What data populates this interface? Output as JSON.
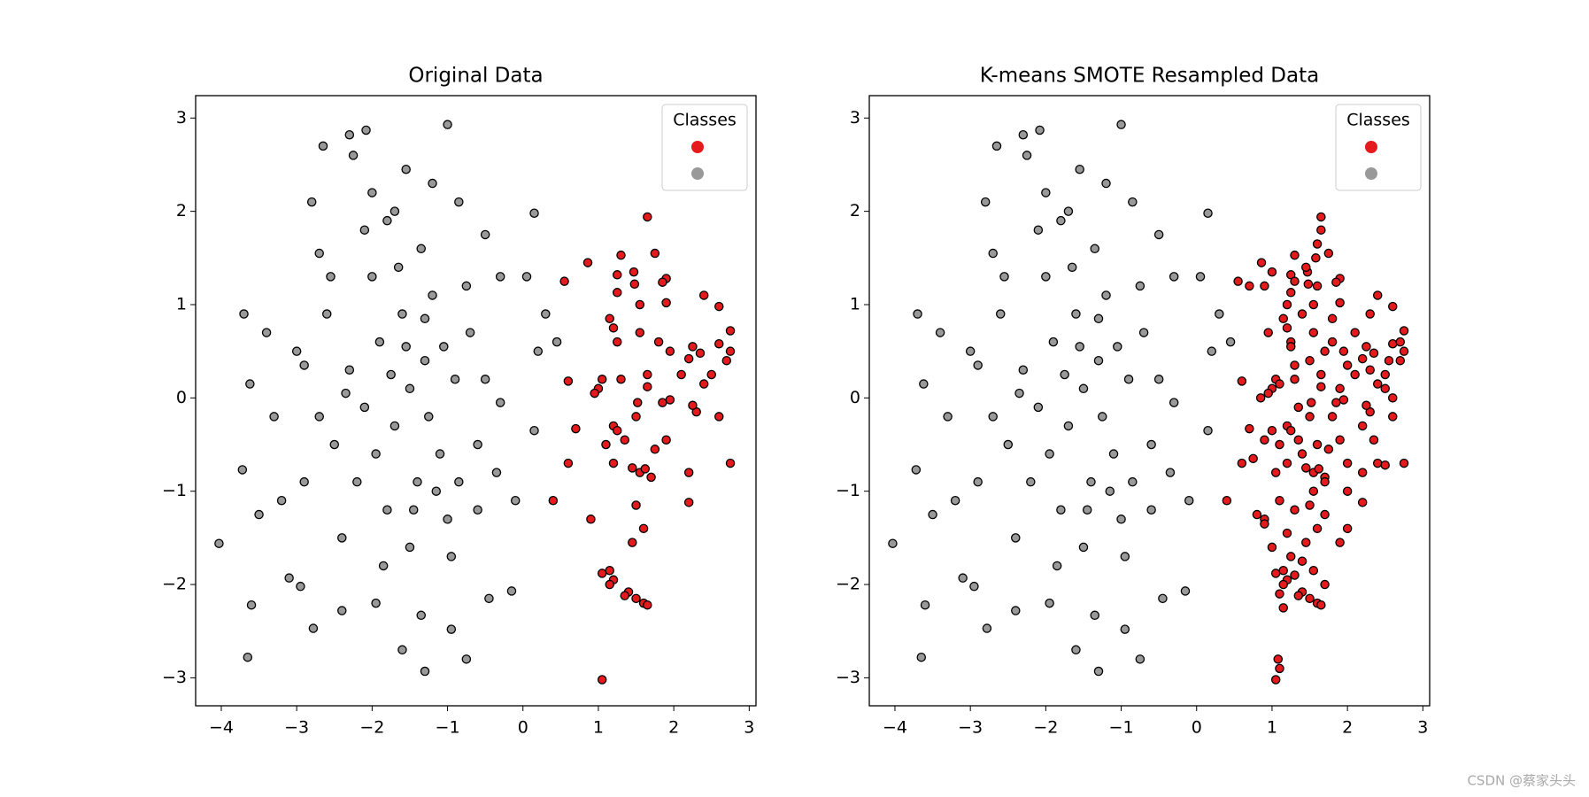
{
  "chart_data": [
    {
      "type": "scatter",
      "title": "Original Data",
      "legend_title": "Classes",
      "legend": "upper right",
      "xlim": [
        -4.34,
        3.09
      ],
      "ylim": [
        -3.3,
        3.24
      ],
      "xticks": [
        {
          "value": -4,
          "label": "−4"
        },
        {
          "value": -3,
          "label": "−3"
        },
        {
          "value": -2,
          "label": "−2"
        },
        {
          "value": -1,
          "label": "−1"
        },
        0,
        1,
        2,
        3
      ],
      "yticks": [
        {
          "value": -3,
          "label": "−3"
        },
        {
          "value": -2,
          "label": "−2"
        },
        {
          "value": -1,
          "label": "−1"
        },
        0,
        1,
        2,
        3
      ],
      "series": [
        {
          "color": "#e41a1c",
          "x": [
            1.65,
            0.86,
            0.55,
            1.3,
            1.75,
            1.25,
            1.47,
            1.48,
            1.9,
            1.85,
            2.4,
            2.6,
            1.25,
            1.55,
            1.9,
            1.15,
            1.2,
            1.25,
            1.55,
            1.8,
            1.95,
            2.2,
            2.25,
            2.35,
            2.6,
            2.75,
            2.75,
            2.7,
            2.5,
            2.1,
            1.65,
            1.3,
            1.05,
            1.0,
            0.6,
            0.95,
            1.65,
            2.4,
            2.3,
            1.95,
            1.85,
            2.25,
            1.52,
            1.5,
            1.2,
            0.7,
            1.25,
            1.35,
            1.1,
            1.9,
            1.75,
            2.6,
            0.6,
            1.2,
            1.45,
            1.55,
            1.62,
            1.7,
            2.2,
            2.75,
            0.4,
            1.5,
            2.2,
            0.9,
            1.6,
            1.45,
            1.05,
            1.15,
            1.2,
            1.15,
            1.4,
            1.5,
            1.6,
            1.65,
            1.35,
            1.05
          ],
          "y": [
            1.94,
            1.45,
            1.25,
            1.53,
            1.55,
            1.32,
            1.35,
            1.22,
            1.28,
            1.24,
            1.1,
            0.98,
            1.13,
            1.0,
            1.02,
            0.85,
            0.75,
            0.6,
            0.7,
            0.6,
            0.5,
            0.42,
            0.55,
            0.48,
            0.58,
            0.72,
            0.5,
            0.4,
            0.25,
            0.25,
            0.25,
            0.2,
            0.2,
            0.1,
            0.18,
            0.05,
            0.12,
            0.15,
            -0.15,
            -0.02,
            -0.05,
            -0.08,
            -0.05,
            -0.2,
            -0.3,
            -0.33,
            -0.35,
            -0.45,
            -0.5,
            -0.45,
            -0.55,
            -0.2,
            -0.7,
            -0.7,
            -0.75,
            -0.8,
            -0.76,
            -0.85,
            -0.8,
            -0.7,
            -1.1,
            -1.15,
            -1.12,
            -1.3,
            -1.4,
            -1.55,
            -1.88,
            -1.85,
            -1.95,
            -2.0,
            -2.08,
            -2.15,
            -2.2,
            -2.22,
            -2.12,
            -3.02
          ]
        },
        {
          "color": "#999999",
          "x": [
            -4.03,
            -3.65,
            -3.6,
            -3.7,
            -3.72,
            -3.62,
            -3.5,
            -3.4,
            -2.95,
            -3.1,
            -2.78,
            -2.65,
            -2.3,
            -2.08,
            -1.0,
            -2.25,
            -1.3,
            -0.75,
            -1.6,
            -1.55,
            -0.85,
            0.15,
            0.05,
            0.3,
            0.2,
            -0.1,
            0.15,
            -0.3,
            -0.15,
            -0.45,
            -0.95,
            -2.4,
            -1.95,
            -1.35,
            -3.2,
            -3.3,
            -2.9,
            -2.7,
            -2.8,
            -2.0,
            -1.8,
            -1.2,
            -0.5,
            -0.3,
            0.45,
            -1.5,
            -1.7,
            -1.3,
            -1.9,
            -1.1,
            -2.1,
            -1.4,
            -1.6,
            -2.3,
            -0.9,
            -1.2,
            -1.8,
            -2.0,
            -1.0,
            -2.5,
            -0.7,
            -1.5,
            -2.2,
            -1.35,
            -0.6,
            -2.6,
            -1.75,
            -1.25,
            -0.85,
            -2.4,
            -1.65,
            -1.05,
            -1.95,
            -2.7,
            -0.5,
            -1.45,
            -2.1,
            -0.75,
            -1.55,
            -2.35,
            -1.15,
            -1.85,
            -0.95,
            -3.0,
            -2.9,
            -0.35,
            -1.7,
            -2.55,
            -0.6,
            -1.3
          ],
          "y": [
            -1.56,
            -2.78,
            -2.22,
            0.9,
            -0.77,
            0.15,
            -1.25,
            0.7,
            -2.02,
            -1.93,
            -2.47,
            2.7,
            2.82,
            2.87,
            2.93,
            2.6,
            -2.93,
            -2.8,
            -2.7,
            2.45,
            2.1,
            1.98,
            1.3,
            0.9,
            0.5,
            -1.1,
            -0.35,
            -0.05,
            -2.07,
            -2.15,
            -2.48,
            -2.28,
            -2.2,
            -2.33,
            -1.1,
            -0.2,
            0.35,
            1.55,
            2.1,
            2.2,
            1.9,
            2.3,
            1.75,
            1.3,
            0.6,
            0.1,
            -0.3,
            0.4,
            0.6,
            -0.6,
            -0.1,
            -0.9,
            0.9,
            0.3,
            0.2,
            1.1,
            -1.2,
            1.3,
            -1.3,
            -0.5,
            0.7,
            -1.6,
            -0.9,
            1.6,
            -0.5,
            0.9,
            0.25,
            -0.2,
            -0.9,
            -1.5,
            1.4,
            0.55,
            -0.6,
            -0.2,
            0.2,
            -1.2,
            1.8,
            1.2,
            0.55,
            0.05,
            -1.0,
            -1.8,
            -1.7,
            0.5,
            -0.9,
            -0.8,
            2.0,
            1.3,
            -1.2,
            0.85
          ]
        }
      ]
    },
    {
      "type": "scatter",
      "title": "K-means SMOTE Resampled Data",
      "legend_title": "Classes",
      "legend": "upper right",
      "xlim": [
        -4.34,
        3.09
      ],
      "ylim": [
        -3.3,
        3.24
      ],
      "xticks": [
        {
          "value": -4,
          "label": "−4"
        },
        {
          "value": -3,
          "label": "−3"
        },
        {
          "value": -2,
          "label": "−2"
        },
        {
          "value": -1,
          "label": "−1"
        },
        0,
        1,
        2,
        3
      ],
      "yticks": [
        {
          "value": -3,
          "label": "−3"
        },
        {
          "value": -2,
          "label": "−2"
        },
        {
          "value": -1,
          "label": "−1"
        },
        0,
        1,
        2,
        3
      ],
      "series": [
        {
          "color": "#e41a1c",
          "x": [
            1.65,
            0.86,
            0.55,
            1.3,
            1.75,
            1.25,
            1.47,
            1.48,
            1.9,
            1.85,
            2.4,
            2.6,
            1.25,
            1.55,
            1.9,
            1.15,
            1.2,
            1.25,
            1.55,
            1.8,
            1.95,
            2.2,
            2.25,
            2.35,
            2.6,
            2.75,
            2.75,
            2.7,
            2.5,
            2.1,
            1.65,
            1.3,
            1.05,
            1.0,
            0.6,
            0.95,
            1.65,
            2.4,
            2.3,
            1.95,
            1.85,
            2.25,
            1.52,
            1.5,
            1.2,
            0.7,
            1.25,
            1.35,
            1.1,
            1.9,
            1.75,
            2.6,
            0.6,
            1.2,
            1.45,
            1.55,
            1.62,
            1.7,
            2.2,
            2.75,
            0.4,
            1.5,
            2.2,
            0.9,
            1.6,
            1.45,
            1.05,
            1.15,
            1.2,
            1.15,
            1.4,
            1.5,
            1.6,
            1.65,
            1.35,
            1.05,
            1.1,
            1.08,
            1.1,
            1.15,
            1.3,
            1.25,
            1.4,
            1.55,
            1.7,
            1.0,
            0.9,
            0.8,
            1.1,
            1.3,
            1.7,
            1.9,
            2.0,
            0.75,
            0.9,
            1.0,
            1.4,
            1.6,
            2.0,
            2.4,
            2.5,
            0.85,
            1.1,
            1.3,
            1.5,
            1.7,
            2.0,
            2.3,
            2.55,
            2.7,
            1.2,
            1.4,
            1.6,
            1.8,
            2.1,
            2.3,
            1.65,
            1.6,
            1.58,
            1.45,
            1.3,
            1.0,
            0.9,
            0.7,
            2.5,
            2.2,
            1.8,
            1.35,
            1.05,
            1.55,
            1.2,
            1.9,
            2.6,
            2.0,
            1.7,
            1.25,
            0.95,
            2.35
          ],
          "y": [
            1.94,
            1.45,
            1.25,
            1.53,
            1.55,
            1.32,
            1.35,
            1.22,
            1.28,
            1.24,
            1.1,
            0.98,
            1.13,
            1.0,
            1.02,
            0.85,
            0.75,
            0.6,
            0.7,
            0.6,
            0.5,
            0.42,
            0.55,
            0.48,
            0.58,
            0.72,
            0.5,
            0.4,
            0.25,
            0.25,
            0.25,
            0.2,
            0.2,
            0.1,
            0.18,
            0.05,
            0.12,
            0.15,
            -0.15,
            -0.02,
            -0.05,
            -0.08,
            -0.05,
            -0.2,
            -0.3,
            -0.33,
            -0.35,
            -0.45,
            -0.5,
            -0.45,
            -0.55,
            -0.2,
            -0.7,
            -0.7,
            -0.75,
            -0.8,
            -0.76,
            -0.85,
            -0.8,
            -0.7,
            -1.1,
            -1.15,
            -1.12,
            -1.3,
            -1.4,
            -1.55,
            -1.88,
            -1.85,
            -1.95,
            -2.0,
            -2.08,
            -2.15,
            -2.2,
            -2.22,
            -2.12,
            -3.02,
            -2.9,
            -2.8,
            -2.1,
            -2.25,
            -1.9,
            -1.7,
            -1.75,
            -1.85,
            -2.0,
            -1.6,
            -1.35,
            -1.25,
            -1.1,
            -1.2,
            -1.25,
            -1.55,
            -1.4,
            -0.65,
            -0.45,
            -0.35,
            -0.6,
            -0.5,
            -0.7,
            -0.7,
            -0.72,
            0.0,
            0.15,
            0.35,
            0.4,
            0.5,
            0.35,
            0.3,
            0.4,
            0.6,
            1.0,
            0.9,
            1.2,
            0.85,
            0.7,
            0.9,
            1.8,
            1.65,
            1.5,
            1.4,
            1.25,
            1.35,
            1.2,
            1.2,
            0.1,
            -0.3,
            -0.2,
            -0.1,
            -0.8,
            -1.0,
            -1.45,
            0.1,
            0.0,
            -1.0,
            -0.9,
            0.55,
            0.7,
            -0.45
          ]
        },
        {
          "color": "#999999",
          "x": [
            -4.03,
            -3.65,
            -3.6,
            -3.7,
            -3.72,
            -3.62,
            -3.5,
            -3.4,
            -2.95,
            -3.1,
            -2.78,
            -2.65,
            -2.3,
            -2.08,
            -1.0,
            -2.25,
            -1.3,
            -0.75,
            -1.6,
            -1.55,
            -0.85,
            0.15,
            0.05,
            0.3,
            0.2,
            -0.1,
            0.15,
            -0.3,
            -0.15,
            -0.45,
            -0.95,
            -2.4,
            -1.95,
            -1.35,
            -3.2,
            -3.3,
            -2.9,
            -2.7,
            -2.8,
            -2.0,
            -1.8,
            -1.2,
            -0.5,
            -0.3,
            0.45,
            -1.5,
            -1.7,
            -1.3,
            -1.9,
            -1.1,
            -2.1,
            -1.4,
            -1.6,
            -2.3,
            -0.9,
            -1.2,
            -1.8,
            -2.0,
            -1.0,
            -2.5,
            -0.7,
            -1.5,
            -2.2,
            -1.35,
            -0.6,
            -2.6,
            -1.75,
            -1.25,
            -0.85,
            -2.4,
            -1.65,
            -1.05,
            -1.95,
            -2.7,
            -0.5,
            -1.45,
            -2.1,
            -0.75,
            -1.55,
            -2.35,
            -1.15,
            -1.85,
            -0.95,
            -3.0,
            -2.9,
            -0.35,
            -1.7,
            -2.55,
            -0.6,
            -1.3
          ],
          "y": [
            -1.56,
            -2.78,
            -2.22,
            0.9,
            -0.77,
            0.15,
            -1.25,
            0.7,
            -2.02,
            -1.93,
            -2.47,
            2.7,
            2.82,
            2.87,
            2.93,
            2.6,
            -2.93,
            -2.8,
            -2.7,
            2.45,
            2.1,
            1.98,
            1.3,
            0.9,
            0.5,
            -1.1,
            -0.35,
            -0.05,
            -2.07,
            -2.15,
            -2.48,
            -2.28,
            -2.2,
            -2.33,
            -1.1,
            -0.2,
            0.35,
            1.55,
            2.1,
            2.2,
            1.9,
            2.3,
            1.75,
            1.3,
            0.6,
            0.1,
            -0.3,
            0.4,
            0.6,
            -0.6,
            -0.1,
            -0.9,
            0.9,
            0.3,
            0.2,
            1.1,
            -1.2,
            1.3,
            -1.3,
            -0.5,
            0.7,
            -1.6,
            -0.9,
            1.6,
            -0.5,
            0.9,
            0.25,
            -0.2,
            -0.9,
            -1.5,
            1.4,
            0.55,
            -0.6,
            -0.2,
            0.2,
            -1.2,
            1.8,
            1.2,
            0.55,
            0.05,
            -1.0,
            -1.8,
            -1.7,
            0.5,
            -0.9,
            -0.8,
            2.0,
            1.3,
            -1.2,
            0.85
          ]
        }
      ]
    }
  ],
  "watermark": "CSDN @蔡家头头"
}
